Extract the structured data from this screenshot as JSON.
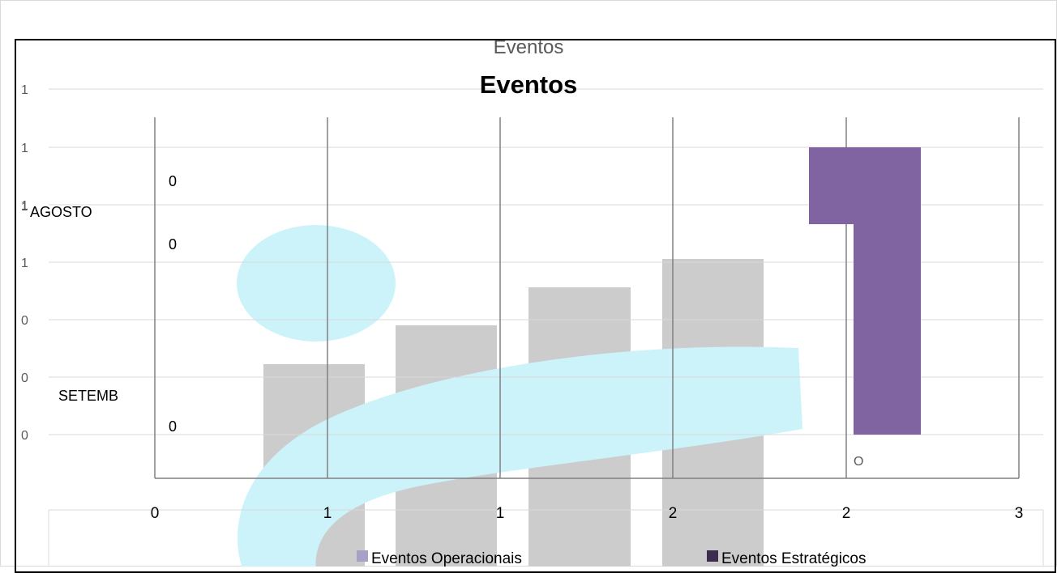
{
  "chart_data": {
    "type": "bar",
    "title_upper": "Eventos",
    "title": "Eventos",
    "y_tick_labels": [
      "1",
      "1",
      "1",
      "1",
      "0",
      "0",
      "0"
    ],
    "x_tick_labels": [
      "0",
      "1",
      "1",
      "2",
      "2",
      "3"
    ],
    "inner_labels": [
      "0",
      "AGOSTO",
      "0",
      "SETEMB",
      "0"
    ],
    "inner_label_sup": "1",
    "bar_annotation": "O",
    "series": [
      {
        "name": "Eventos Operacionais",
        "color": "#a9a0c6"
      },
      {
        "name": "Eventos Estratégicos",
        "color": "#3b2d50"
      }
    ],
    "highlight_bar": {
      "color": "#8064a2"
    },
    "watermark": {
      "bars_color": "#cccccc",
      "swoosh_color": "#ccf3fa"
    }
  }
}
